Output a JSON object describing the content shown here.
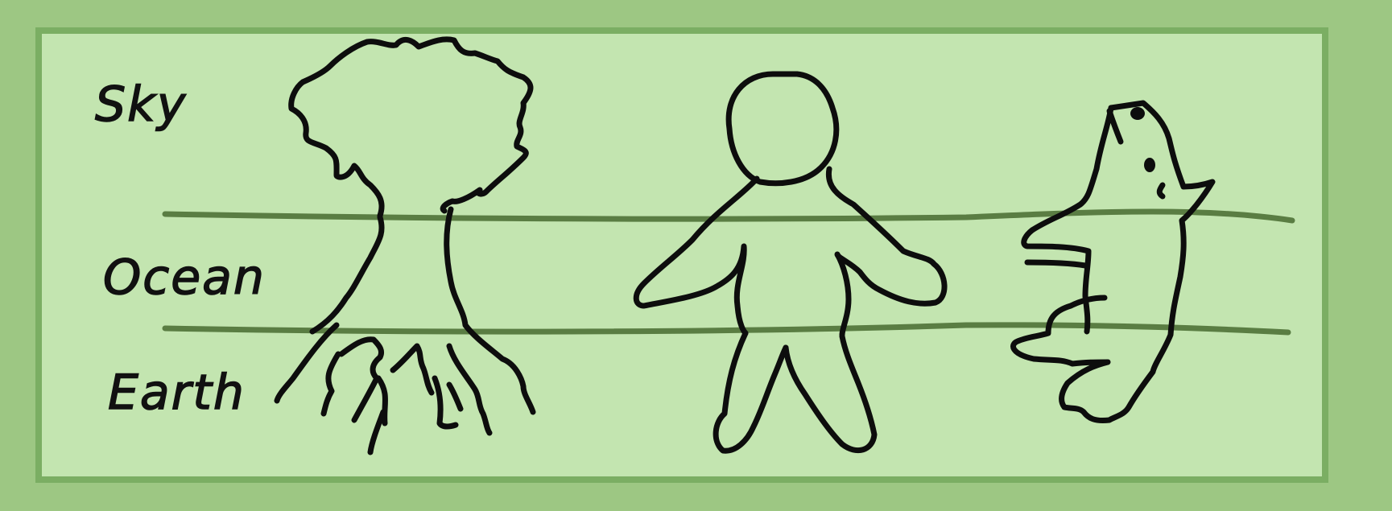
{
  "colors": {
    "background": "#9dc783",
    "panel": "#c3e5b0",
    "panel_border": "#7bae63",
    "divider": "#5a7d43",
    "ink": "#0d0d0d"
  },
  "labels": {
    "sky": "Sky",
    "ocean": "Ocean",
    "earth": "Earth"
  },
  "figures": [
    "tree-icon",
    "person-icon",
    "fish-icon"
  ]
}
